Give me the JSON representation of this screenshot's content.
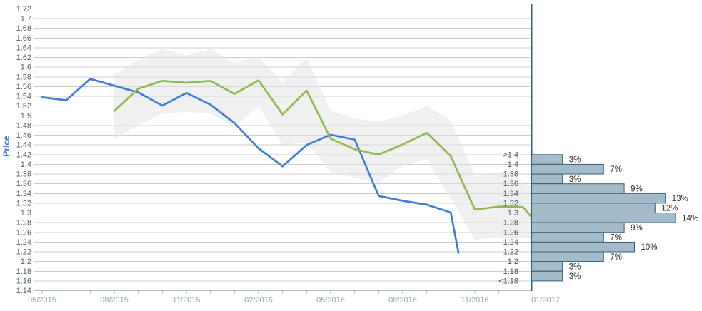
{
  "chart_data": [
    {
      "type": "line",
      "title": "",
      "ylabel": "Price",
      "ylim": [
        1.14,
        1.72
      ],
      "y_tick_step": 0.02,
      "grid": true,
      "legend": "none",
      "y_tick_labels": [
        "1.72",
        "1.7",
        "1.68",
        "1.66",
        "1.64",
        "1.62",
        "1.6",
        "1.58",
        "1.56",
        "1.54",
        "1.52",
        "1.5",
        "1.48",
        "1.46",
        "1.44",
        "1.42",
        "1.4",
        "1.38",
        "1.36",
        "1.34",
        "1.32",
        "1.3",
        "1.28",
        "1.26",
        "1.24",
        "1.22",
        "1.2",
        "1.18",
        "1.16",
        "1.14"
      ],
      "x_ticks": [
        {
          "label": "05/2015",
          "month": 0
        },
        {
          "label": "08/2015",
          "month": 3
        },
        {
          "label": "11/2015",
          "month": 6
        },
        {
          "label": "02/2016",
          "month": 9
        },
        {
          "label": "05/2016",
          "month": 12
        },
        {
          "label": "08/2016",
          "month": 15
        },
        {
          "label": "11/2016",
          "month": 18
        }
      ],
      "minor_tick_every_month": true,
      "minor_tick_month_range": [
        0,
        20
      ],
      "series": [
        {
          "name": "price-history-line",
          "color": "#3e7ed8",
          "points": [
            [
              0,
              1.538
            ],
            [
              1,
              1.532
            ],
            [
              2,
              1.576
            ],
            [
              3,
              1.562
            ],
            [
              4,
              1.548
            ],
            [
              5,
              1.521
            ],
            [
              6,
              1.547
            ],
            [
              7,
              1.523
            ],
            [
              8,
              1.485
            ],
            [
              9,
              1.433
            ],
            [
              10,
              1.396
            ],
            [
              11,
              1.44
            ],
            [
              12,
              1.461
            ],
            [
              13,
              1.451
            ],
            [
              14,
              1.335
            ],
            [
              15,
              1.325
            ],
            [
              16,
              1.317
            ],
            [
              17,
              1.301
            ],
            [
              17.32,
              1.218
            ]
          ]
        },
        {
          "name": "price-forecast-line",
          "color": "#8eba50",
          "points": [
            [
              3,
              1.51
            ],
            [
              4,
              1.556
            ],
            [
              5,
              1.572
            ],
            [
              6,
              1.568
            ],
            [
              7,
              1.572
            ],
            [
              8,
              1.545
            ],
            [
              9,
              1.573
            ],
            [
              10,
              1.503
            ],
            [
              11,
              1.552
            ],
            [
              12,
              1.453
            ],
            [
              13,
              1.431
            ],
            [
              14,
              1.42
            ],
            [
              15,
              1.441
            ],
            [
              16,
              1.465
            ],
            [
              17,
              1.417
            ],
            [
              18,
              1.307
            ],
            [
              19,
              1.313
            ],
            [
              20,
              1.312
            ],
            [
              20.35,
              1.292
            ]
          ]
        }
      ],
      "band": {
        "name": "forecast-confidence-band",
        "color": "#e2e2e2",
        "opacity": 0.5,
        "points": [
          [
            3,
            1.452,
            1.585
          ],
          [
            4,
            1.48,
            1.615
          ],
          [
            5,
            1.505,
            1.638
          ],
          [
            6,
            1.508,
            1.624
          ],
          [
            7,
            1.505,
            1.638
          ],
          [
            8,
            1.477,
            1.609
          ],
          [
            9,
            1.52,
            1.622
          ],
          [
            10,
            1.44,
            1.568
          ],
          [
            11,
            1.445,
            1.618
          ],
          [
            12,
            1.385,
            1.511
          ],
          [
            13,
            1.372,
            1.494
          ],
          [
            14,
            1.362,
            1.488
          ],
          [
            15,
            1.397,
            1.5
          ],
          [
            16,
            1.41,
            1.52
          ],
          [
            17,
            1.33,
            1.49
          ],
          [
            18,
            1.245,
            1.376
          ],
          [
            19,
            1.25,
            1.38
          ],
          [
            20.35,
            1.248,
            1.355
          ]
        ]
      },
      "axis_colors": {
        "grid": "#cccccc",
        "axis_line": "#b3bfc7",
        "y_tick_label": "#555f69",
        "x_tick_label": "#9aa4ac",
        "title": "#3a76d2"
      }
    },
    {
      "type": "bar",
      "orientation": "horizontal",
      "xlabel": "01/2017",
      "bin_boundaries": [
        ">1.4",
        "1.4",
        "1.38",
        "1.36",
        "1.34",
        "1.32",
        "1.3",
        "1.28",
        "1.26",
        "1.24",
        "1.22",
        "1.2",
        "1.18",
        "<1.18"
      ],
      "bin_top_price": 1.42,
      "bin_step": 0.02,
      "values": [
        3,
        7,
        3,
        9,
        13,
        12,
        14,
        9,
        7,
        10,
        7,
        3,
        3
      ],
      "value_labels": [
        "3%",
        "7%",
        "3%",
        "9%",
        "13%",
        "12%",
        "14%",
        "9%",
        "7%",
        "10%",
        "7%",
        "3%",
        "3%"
      ],
      "bar_color": "#a4bbc9",
      "bar_border_color": "#31607e",
      "axis_color": "#31607e",
      "label_color": "#4a545e",
      "value_label_color": "#2d2d2d"
    }
  ]
}
